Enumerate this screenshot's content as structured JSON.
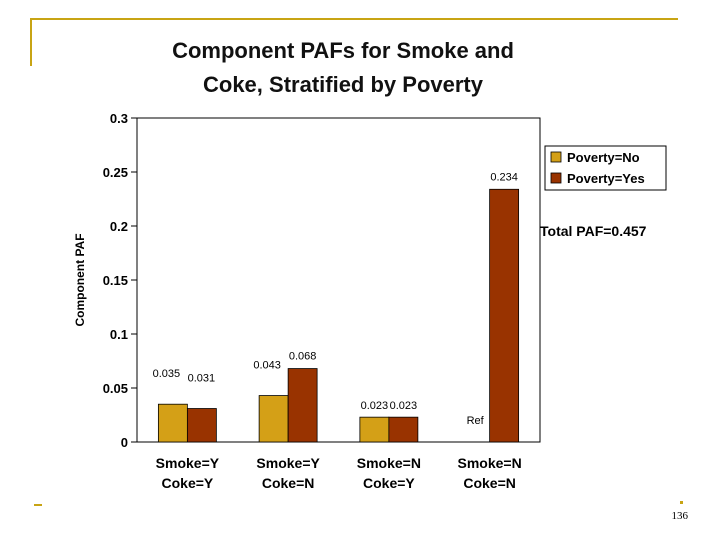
{
  "slide_number": "136",
  "colors": {
    "frame": "#c8a414",
    "poverty_no": "#d4a017",
    "poverty_yes": "#993300"
  },
  "chart_data": {
    "type": "bar",
    "title_lines": [
      "Component PAFs for Smoke and",
      "Coke, Stratified by Poverty"
    ],
    "ylabel": "Component PAF",
    "xlabel": "",
    "ylim": [
      0,
      0.3
    ],
    "yticks": [
      "0",
      "0.05",
      "0.1",
      "0.15",
      "0.2",
      "0.25",
      "0.3"
    ],
    "categories": [
      [
        "Smoke=Y",
        "Coke=Y"
      ],
      [
        "Smoke=Y",
        "Coke=N"
      ],
      [
        "Smoke=N",
        "Coke=Y"
      ],
      [
        "Smoke=N",
        "Coke=N"
      ]
    ],
    "series": [
      {
        "name": "Poverty=No",
        "color": "#d4a017",
        "values": [
          0.035,
          0.043,
          0.023,
          null
        ],
        "labels": [
          "0.035",
          "0.043",
          "0.023",
          "Ref"
        ]
      },
      {
        "name": "Poverty=Yes",
        "color": "#993300",
        "values": [
          0.031,
          0.068,
          0.023,
          0.234
        ],
        "labels": [
          "0.031",
          "0.068",
          "0.023",
          "0.234"
        ]
      }
    ],
    "annotation": "Total PAF=0.457",
    "legend_position": "right",
    "grid": false
  }
}
